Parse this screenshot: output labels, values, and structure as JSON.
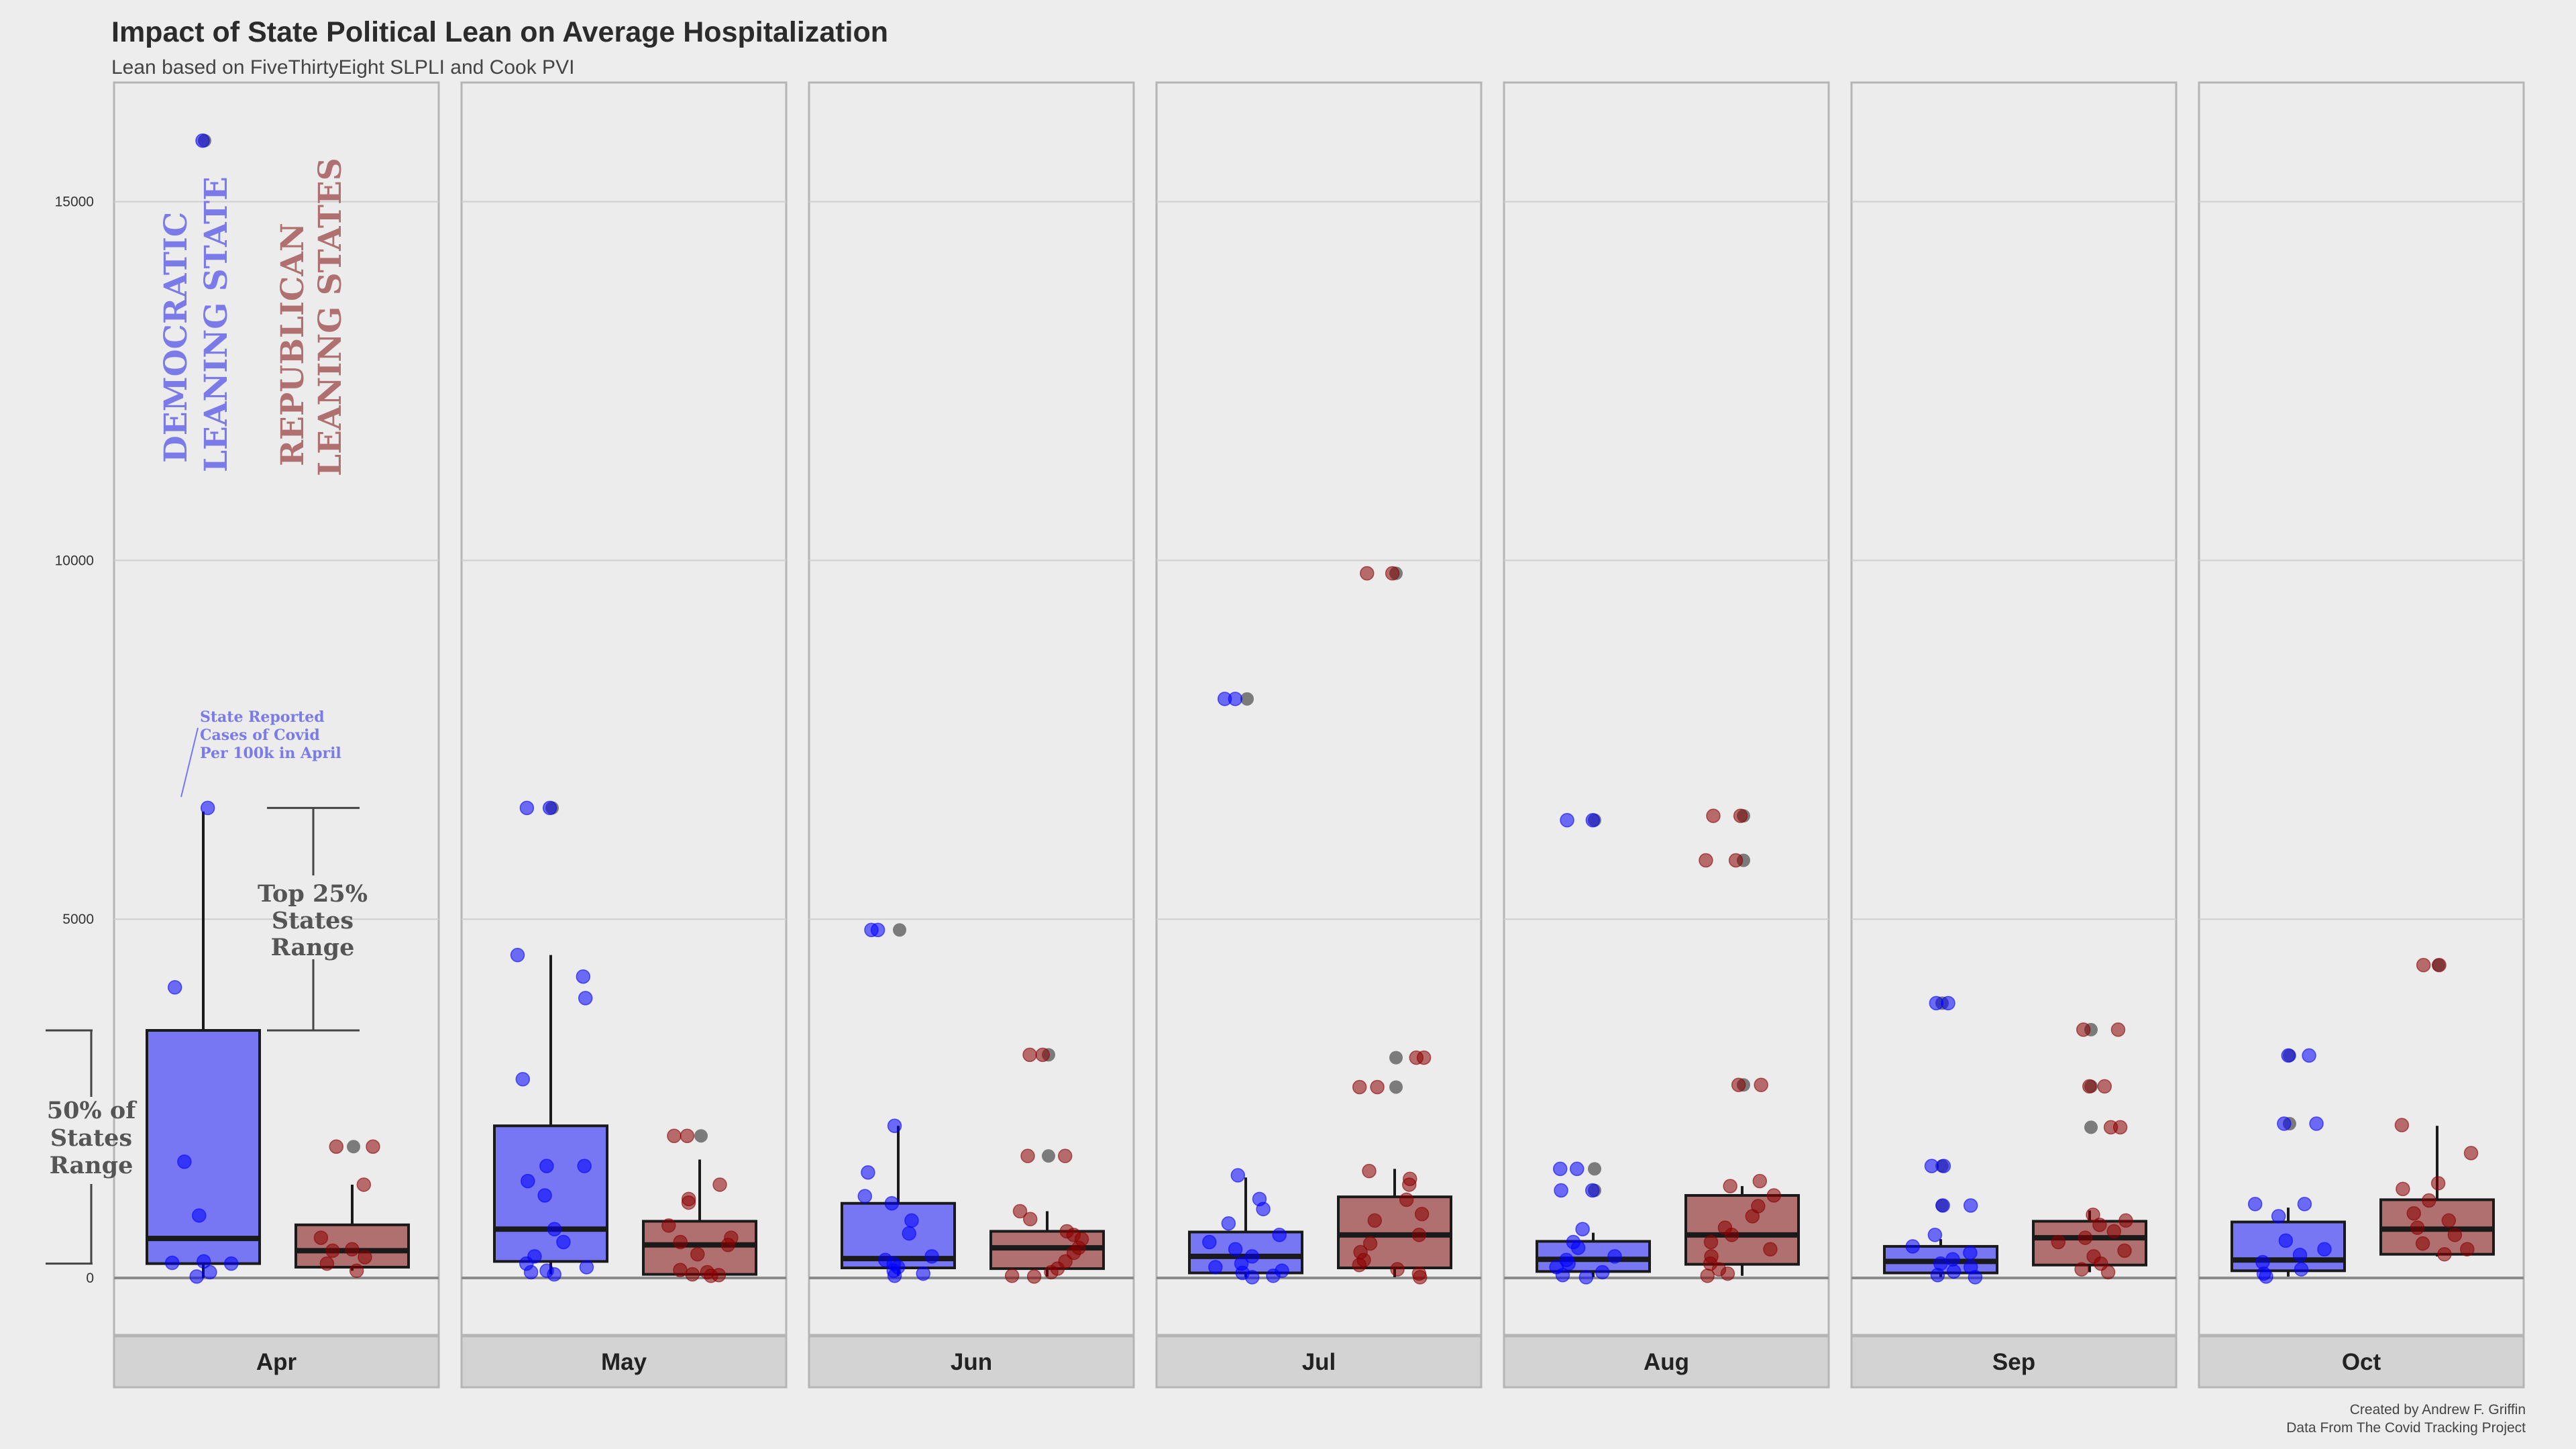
{
  "title": "Impact of State Political Lean on Average Hospitalization",
  "subtitle": "Lean based on FiveThirtyEight SLPLI and Cook PVI",
  "caption": {
    "line1": "Created by Andrew F. Griffin",
    "line2": "Data From The Covid Tracking Project"
  },
  "colors": {
    "dem_fill": "#7777f4",
    "dem_point": "#0000ff",
    "rep_fill": "#b07070",
    "rep_point": "#8b0000",
    "outlier": "#555555",
    "dem_text": "#7a7ae8",
    "rep_text": "#b07070",
    "annotation_text": "#555555"
  },
  "annotations": {
    "dem_label_line1": "DEMOCRATIC",
    "dem_label_line2": "LEANING STATE",
    "rep_label_line1": "REPUBLICAN",
    "rep_label_line2": "LEANING STATES",
    "point_note_line1": "State Reported",
    "point_note_line2": "Cases of Covid",
    "point_note_line3": "Per 100k in April",
    "top_line1": "Top 25%",
    "top_line2": "States",
    "top_line3": "Range",
    "mid_line1": "50% of",
    "mid_line2": "States",
    "mid_line3": "Range"
  },
  "chart_data": {
    "type": "box",
    "xlabel": "",
    "ylabel": "",
    "ylim": [
      -800,
      16500
    ],
    "yticks": [
      0,
      5000,
      10000,
      15000
    ],
    "grid": true,
    "legend": "none",
    "groups": [
      "Democratic",
      "Republican"
    ],
    "facets": [
      {
        "month": "Apr",
        "dem": {
          "min": 0,
          "q1": 200,
          "median": 550,
          "q3": 3450,
          "max": 6500,
          "points": [
            15850,
            6550,
            4050,
            1620,
            870,
            230,
            210,
            200,
            80,
            20
          ],
          "outliers": [
            15850
          ]
        },
        "rep": {
          "min": 100,
          "q1": 150,
          "median": 380,
          "q3": 740,
          "max": 1300,
          "points": [
            1830,
            1830,
            1300,
            560,
            400,
            380,
            290,
            200,
            100
          ],
          "outliers": [
            1830
          ]
        }
      },
      {
        "month": "May",
        "dem": {
          "min": 50,
          "q1": 230,
          "median": 680,
          "q3": 2120,
          "max": 4500,
          "points": [
            6550,
            6550,
            4500,
            4200,
            3900,
            2770,
            1560,
            1560,
            1350,
            1150,
            680,
            500,
            300,
            200,
            150,
            100,
            80,
            50
          ],
          "outliers": [
            6550
          ]
        },
        "rep": {
          "min": 30,
          "q1": 50,
          "median": 460,
          "q3": 790,
          "max": 1650,
          "points": [
            1980,
            1980,
            1300,
            1100,
            1050,
            730,
            560,
            500,
            460,
            330,
            110,
            80,
            50,
            40,
            30
          ],
          "outliers": [
            1980
          ]
        }
      },
      {
        "month": "Jun",
        "dem": {
          "min": 30,
          "q1": 140,
          "median": 270,
          "q3": 1040,
          "max": 2120,
          "points": [
            4850,
            4850,
            2120,
            1470,
            1140,
            1040,
            800,
            620,
            300,
            250,
            200,
            150,
            100,
            60,
            30
          ],
          "outliers": [
            4850
          ]
        },
        "rep": {
          "min": 20,
          "q1": 130,
          "median": 420,
          "q3": 650,
          "max": 930,
          "points": [
            3110,
            3110,
            1700,
            1700,
            930,
            820,
            650,
            600,
            540,
            420,
            350,
            230,
            130,
            80,
            30,
            20
          ],
          "outliers": [
            3110,
            1700
          ]
        }
      },
      {
        "month": "Jul",
        "dem": {
          "min": 10,
          "q1": 70,
          "median": 300,
          "q3": 640,
          "max": 1400,
          "points": [
            8070,
            8070,
            1430,
            1100,
            960,
            760,
            600,
            500,
            400,
            300,
            200,
            150,
            100,
            70,
            30,
            10
          ],
          "outliers": [
            8070
          ]
        },
        "rep": {
          "min": 10,
          "q1": 140,
          "median": 600,
          "q3": 1130,
          "max": 1520,
          "points": [
            9820,
            9820,
            3070,
            3070,
            2660,
            2660,
            1490,
            1380,
            1300,
            1090,
            890,
            800,
            600,
            480,
            360,
            250,
            180,
            120,
            60,
            10
          ],
          "outliers": [
            9820,
            3070,
            2660
          ]
        }
      },
      {
        "month": "Aug",
        "dem": {
          "min": 10,
          "q1": 90,
          "median": 260,
          "q3": 510,
          "max": 630,
          "points": [
            6380,
            6380,
            1520,
            1520,
            1220,
            1220,
            680,
            500,
            420,
            300,
            250,
            200,
            150,
            80,
            40,
            10
          ],
          "outliers": [
            6380,
            1520,
            1220
          ]
        },
        "rep": {
          "min": 30,
          "q1": 190,
          "median": 600,
          "q3": 1150,
          "max": 1280,
          "points": [
            6440,
            6440,
            5820,
            5820,
            2690,
            2690,
            1350,
            1280,
            1150,
            1000,
            860,
            700,
            600,
            500,
            400,
            300,
            200,
            120,
            60,
            30
          ],
          "outliers": [
            6440,
            5820,
            2690
          ]
        }
      },
      {
        "month": "Sep",
        "dem": {
          "min": 10,
          "q1": 70,
          "median": 230,
          "q3": 440,
          "max": 540,
          "points": [
            3830,
            3830,
            1560,
            1560,
            1010,
            1010,
            600,
            440,
            350,
            260,
            200,
            150,
            90,
            40,
            10
          ],
          "outliers": [
            3830,
            1560,
            1010
          ]
        },
        "rep": {
          "min": 80,
          "q1": 180,
          "median": 560,
          "q3": 790,
          "max": 940,
          "points": [
            3460,
            3460,
            2670,
            2670,
            2100,
            2100,
            880,
            800,
            740,
            650,
            560,
            500,
            380,
            300,
            200,
            120,
            80
          ],
          "outliers": [
            3460,
            2670,
            2100
          ]
        }
      },
      {
        "month": "Oct",
        "dem": {
          "min": 20,
          "q1": 100,
          "median": 250,
          "q3": 780,
          "max": 980,
          "points": [
            3100,
            3100,
            2150,
            2150,
            1030,
            1030,
            860,
            520,
            400,
            320,
            220,
            120,
            60,
            20
          ],
          "outliers": [
            3100,
            2150
          ]
        },
        "rep": {
          "min": 300,
          "q1": 330,
          "median": 680,
          "q3": 1090,
          "max": 2120,
          "points": [
            4360,
            4360,
            2130,
            1740,
            1320,
            1240,
            1080,
            900,
            800,
            700,
            600,
            480,
            400,
            330
          ],
          "outliers": [
            4360
          ]
        }
      }
    ]
  }
}
